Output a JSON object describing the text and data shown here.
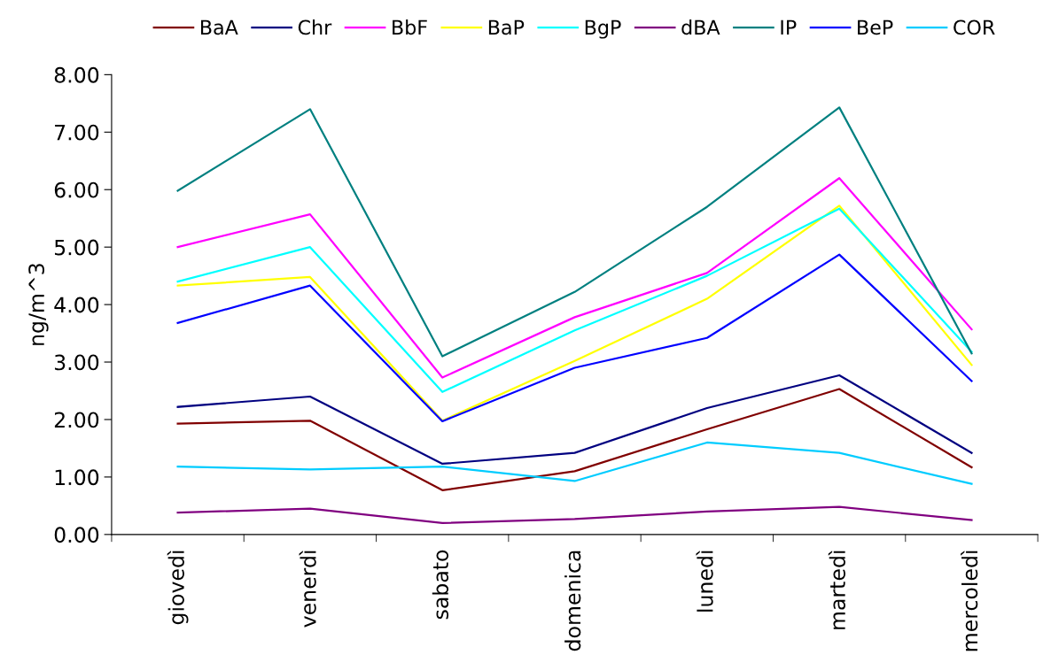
{
  "chart_data": {
    "type": "line",
    "ylabel": "ng/m^3",
    "categories": [
      "giovedì",
      "venerdì",
      "sabato",
      "domenica",
      "lunedì",
      "martedì",
      "mercoledì"
    ],
    "series": [
      {
        "name": "BaA",
        "color": "#800000",
        "values": [
          1.93,
          1.98,
          0.77,
          1.1,
          1.83,
          2.53,
          1.17
        ]
      },
      {
        "name": "Chr",
        "color": "#000080",
        "values": [
          2.22,
          2.4,
          1.23,
          1.42,
          2.2,
          2.77,
          1.42
        ]
      },
      {
        "name": "BbF",
        "color": "#ff00ff",
        "values": [
          5.0,
          5.57,
          2.73,
          3.78,
          4.55,
          6.2,
          3.57
        ]
      },
      {
        "name": "BaP",
        "color": "#ffff00",
        "values": [
          4.33,
          4.48,
          1.98,
          3.02,
          4.1,
          5.72,
          2.95
        ]
      },
      {
        "name": "BgP",
        "color": "#00ffff",
        "values": [
          4.4,
          5.0,
          2.48,
          3.55,
          4.5,
          5.67,
          3.18
        ]
      },
      {
        "name": "dBA",
        "color": "#800080",
        "values": [
          0.38,
          0.45,
          0.2,
          0.27,
          0.4,
          0.48,
          0.25
        ]
      },
      {
        "name": "IP",
        "color": "#008080",
        "values": [
          5.98,
          7.4,
          3.1,
          4.22,
          5.7,
          7.43,
          3.15
        ]
      },
      {
        "name": "BeP",
        "color": "#0000ff",
        "values": [
          3.68,
          4.33,
          1.97,
          2.9,
          3.42,
          4.87,
          2.67
        ]
      },
      {
        "name": "COR",
        "color": "#00ccff",
        "values": [
          1.18,
          1.13,
          1.18,
          0.93,
          1.6,
          1.42,
          0.88
        ]
      }
    ],
    "ylim": [
      0,
      8
    ],
    "yticks": [
      {
        "value": 0,
        "label": "0.00"
      },
      {
        "value": 1,
        "label": "1.00"
      },
      {
        "value": 2,
        "label": "2.00"
      },
      {
        "value": 3,
        "label": "3.00"
      },
      {
        "value": 4,
        "label": "4.00"
      },
      {
        "value": 5,
        "label": "5.00"
      },
      {
        "value": 6,
        "label": "6.00"
      },
      {
        "value": 7,
        "label": "7.00"
      },
      {
        "value": 8,
        "label": "8.00"
      }
    ],
    "grid": false,
    "legend": "top",
    "marker": "none",
    "line_style": "solid"
  }
}
